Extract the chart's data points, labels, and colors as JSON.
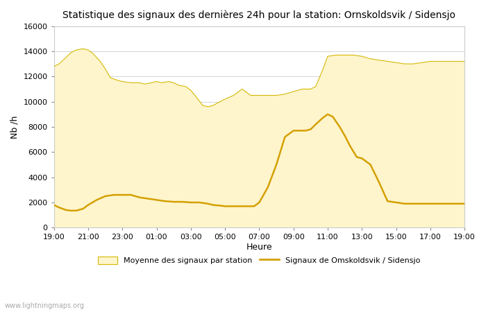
{
  "title": "Statistique des signaux des dernières 24h pour la station: Ornskoldsvik / Sidensjo",
  "xlabel": "Heure",
  "ylabel": "Nb /h",
  "ylim": [
    0,
    16000
  ],
  "yticks": [
    0,
    2000,
    4000,
    6000,
    8000,
    10000,
    12000,
    14000,
    16000
  ],
  "xtick_labels": [
    "19:00",
    "21:00",
    "23:00",
    "01:00",
    "03:00",
    "05:00",
    "07:00",
    "09:00",
    "11:00",
    "13:00",
    "15:00",
    "17:00",
    "19:00"
  ],
  "xtick_positions": [
    0,
    2,
    4,
    6,
    8,
    10,
    12,
    14,
    16,
    18,
    20,
    22,
    24
  ],
  "fill_color": "#FFF5CC",
  "fill_edge_color": "#D4B800",
  "line_color": "#D4A000",
  "watermark": "www.lightningmaps.org",
  "legend_fill": "Moyenne des signaux par station",
  "legend_line": "Signaux de Omskoldsvik / Sidensjo",
  "background_color": "#ffffff",
  "plot_bg_color": "#ffffff",
  "avg_x": [
    0,
    0.3,
    0.7,
    1.0,
    1.3,
    1.7,
    2.0,
    2.3,
    2.7,
    3.0,
    3.3,
    3.7,
    4.0,
    4.5,
    5.0,
    5.3,
    5.7,
    6.0,
    6.3,
    6.7,
    7.0,
    7.3,
    7.7,
    8.0,
    8.3,
    8.7,
    9.0,
    9.3,
    9.7,
    10.0,
    10.5,
    11.0,
    11.5,
    12.0,
    12.5,
    13.0,
    13.5,
    14.0,
    14.5,
    15.0,
    15.3,
    15.7,
    16.0,
    16.5,
    17.0,
    17.5,
    18.0,
    18.5,
    19.0,
    19.5,
    20.0,
    20.5,
    21.0,
    21.5,
    22.0,
    22.5,
    23.0,
    23.5,
    24.0
  ],
  "avg_y": [
    12800,
    13000,
    13500,
    13900,
    14100,
    14200,
    14100,
    13800,
    13200,
    12600,
    11900,
    11700,
    11600,
    11500,
    11500,
    11400,
    11500,
    11600,
    11500,
    11600,
    11500,
    11300,
    11200,
    10900,
    10400,
    9700,
    9600,
    9700,
    10000,
    10200,
    10500,
    11000,
    10500,
    10500,
    10500,
    10500,
    10600,
    10800,
    11000,
    11000,
    11200,
    12500,
    13600,
    13700,
    13700,
    13700,
    13600,
    13400,
    13300,
    13200,
    13100,
    13000,
    13000,
    13100,
    13200,
    13200,
    13200,
    13200,
    13200
  ],
  "line_x": [
    0,
    0.3,
    0.7,
    1.0,
    1.3,
    1.7,
    2.0,
    2.5,
    3.0,
    3.5,
    4.0,
    4.5,
    5.0,
    5.5,
    6.0,
    6.5,
    7.0,
    7.5,
    8.0,
    8.5,
    9.0,
    9.3,
    9.7,
    10.0,
    10.3,
    10.7,
    11.0,
    11.3,
    11.7,
    12.0,
    12.5,
    13.0,
    13.5,
    14.0,
    14.3,
    14.7,
    15.0,
    15.3,
    15.7,
    16.0,
    16.3,
    16.7,
    17.0,
    17.3,
    17.7,
    18.0,
    18.5,
    19.0,
    19.5,
    20.0,
    20.5,
    21.0,
    21.5,
    22.0,
    22.5,
    23.0,
    23.5,
    24.0
  ],
  "line_y": [
    1800,
    1600,
    1400,
    1350,
    1350,
    1500,
    1800,
    2200,
    2500,
    2600,
    2600,
    2600,
    2400,
    2300,
    2200,
    2100,
    2050,
    2050,
    2000,
    2000,
    1900,
    1800,
    1750,
    1700,
    1700,
    1700,
    1700,
    1700,
    1700,
    2000,
    3200,
    5000,
    7200,
    7700,
    7700,
    7700,
    7800,
    8200,
    8700,
    9000,
    8800,
    8000,
    7300,
    6500,
    5600,
    5500,
    5000,
    3600,
    2100,
    2000,
    1900,
    1900,
    1900,
    1900,
    1900,
    1900,
    1900,
    1900
  ]
}
